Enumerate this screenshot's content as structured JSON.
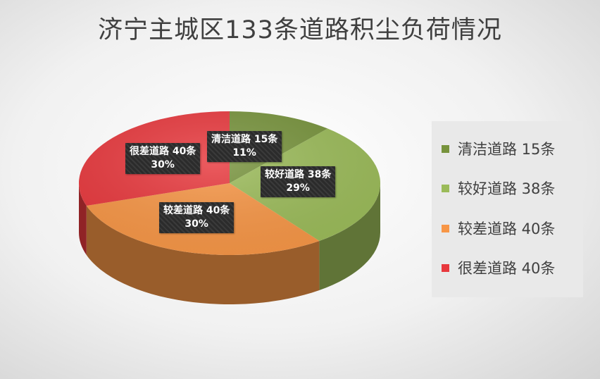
{
  "chart_data": {
    "type": "pie",
    "title": "济宁主城区133条道路积尘负荷情况",
    "slices": [
      {
        "legend": "清洁道路 15条",
        "label": "清洁道路 15条",
        "percent_label": "11%",
        "value": 15,
        "color": "#77933c"
      },
      {
        "legend": "较好道路 38条",
        "label": "较好道路 38条",
        "percent_label": "29%",
        "value": 38,
        "color": "#9bbb59"
      },
      {
        "legend": "较差道路 40条",
        "label": "较差道路 40条",
        "percent_label": "30%",
        "value": 40,
        "color": "#f79646"
      },
      {
        "legend": "很差道路 40条",
        "label": "很差道路 40条",
        "percent_label": "30%",
        "value": 40,
        "color": "#e8383d"
      }
    ],
    "legend_position": "right",
    "style": "3d-pie"
  }
}
